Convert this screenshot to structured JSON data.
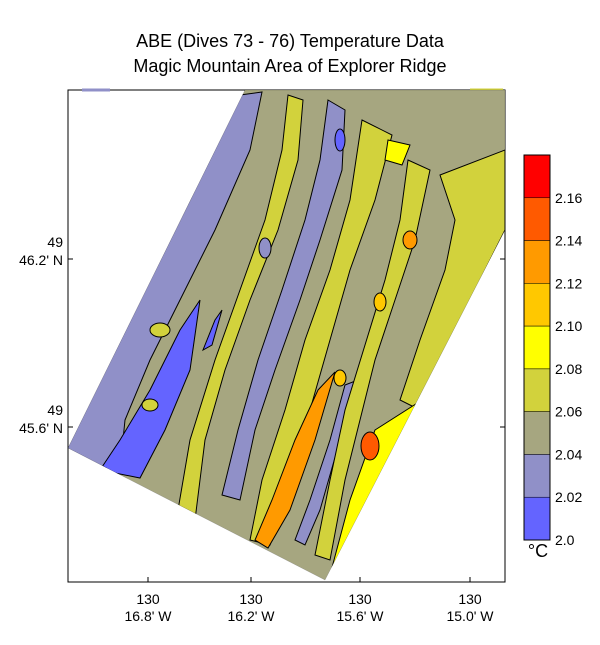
{
  "chart_data": {
    "type": "heatmap",
    "title": "ABE (Dives 73 - 76) Temperature Data",
    "subtitle": "Magic Mountain Area of Explorer Ridge",
    "x_ticks": [
      {
        "deg": "130",
        "min": "16.8' W"
      },
      {
        "deg": "130",
        "min": "16.2' W"
      },
      {
        "deg": "130",
        "min": "15.6' W"
      },
      {
        "deg": "130",
        "min": "15.0' W"
      }
    ],
    "y_ticks": [
      {
        "deg": "49",
        "min": "46.2' N"
      },
      {
        "deg": "49",
        "min": "45.6' N"
      }
    ],
    "colorbar": {
      "unit": "°C",
      "levels": [
        {
          "value": "2.16",
          "color": "#ff0000"
        },
        {
          "value": "2.14",
          "color": "#ff5a00"
        },
        {
          "value": "2.12",
          "color": "#ff9a00"
        },
        {
          "value": "2.10",
          "color": "#ffc800"
        },
        {
          "value": "2.08",
          "color": "#ffff00"
        },
        {
          "value": "2.06",
          "color": "#d2d23c"
        },
        {
          "value": "2.04",
          "color": "#a6a680"
        },
        {
          "value": "2.02",
          "color": "#9090c8"
        },
        {
          "value": "2.0",
          "color": "#6464ff"
        }
      ]
    },
    "grid": false
  }
}
